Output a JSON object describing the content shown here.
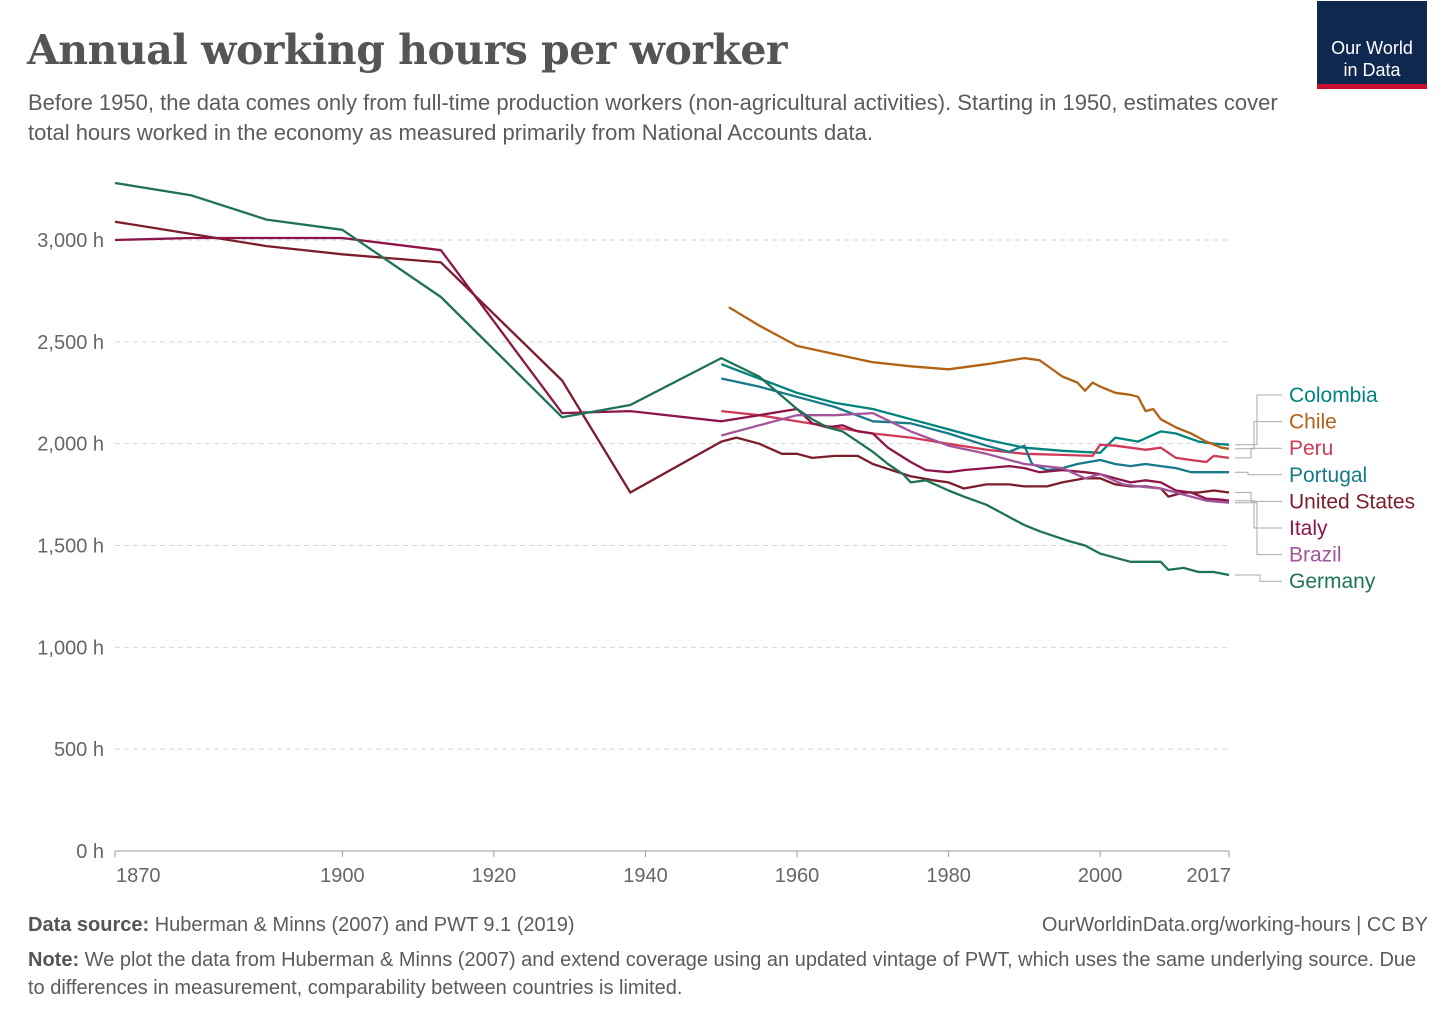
{
  "header": {
    "title": "Annual working hours per worker",
    "subtitle": "Before 1950, the data comes only from full-time production workers (non-agricultural activities). Starting in 1950, estimates cover total hours worked in the economy as measured primarily from National Accounts data."
  },
  "logo": {
    "line1": "Our World",
    "line2": "in Data",
    "bg_color": "#0f2850",
    "accent_color": "#c8102e"
  },
  "footer": {
    "source_label": "Data source:",
    "source_text": "Huberman & Minns (2007) and PWT 9.1 (2019)",
    "url_text": "OurWorldinData.org/working-hours | CC BY",
    "note_label": "Note:",
    "note_text": "We plot the data from Huberman & Minns (2007) and extend coverage using an updated vintage of PWT, which uses the same underlying source. Due to differences in measurement, comparability between countries is limited."
  },
  "chart_data": {
    "type": "line",
    "title": "Annual working hours per worker",
    "xlim": [
      1870,
      2017
    ],
    "ylim": [
      0,
      3000
    ],
    "x_ticks": [
      1870,
      1900,
      1920,
      1940,
      1960,
      1980,
      2000,
      2017
    ],
    "x_tick_labels": [
      "1870",
      "1900",
      "1920",
      "1940",
      "1960",
      "1980",
      "2000",
      "2017"
    ],
    "y_ticks": [
      0,
      500,
      1000,
      1500,
      2000,
      2500,
      3000
    ],
    "y_tick_labels": [
      "0 h",
      "500 h",
      "1,000 h",
      "1,500 h",
      "2,000 h",
      "2,500 h",
      "3,000 h"
    ],
    "grid": "horizontal dashed",
    "legend": "right, labels at line ends",
    "series": [
      {
        "name": "Colombia",
        "color": "#00847e",
        "points": [
          [
            1950,
            2390
          ],
          [
            1955,
            2320
          ],
          [
            1960,
            2250
          ],
          [
            1965,
            2200
          ],
          [
            1970,
            2170
          ],
          [
            1975,
            2120
          ],
          [
            1980,
            2070
          ],
          [
            1985,
            2020
          ],
          [
            1990,
            1980
          ],
          [
            1995,
            1965
          ],
          [
            2000,
            1955
          ],
          [
            2002,
            2030
          ],
          [
            2005,
            2010
          ],
          [
            2008,
            2060
          ],
          [
            2010,
            2050
          ],
          [
            2013,
            2010
          ],
          [
            2015,
            2000
          ],
          [
            2017,
            1995
          ]
        ]
      },
      {
        "name": "Chile",
        "color": "#b16214",
        "points": [
          [
            1951,
            2670
          ],
          [
            1955,
            2580
          ],
          [
            1960,
            2480
          ],
          [
            1965,
            2440
          ],
          [
            1970,
            2400
          ],
          [
            1975,
            2380
          ],
          [
            1980,
            2365
          ],
          [
            1985,
            2390
          ],
          [
            1990,
            2420
          ],
          [
            1992,
            2410
          ],
          [
            1995,
            2330
          ],
          [
            1997,
            2300
          ],
          [
            1998,
            2260
          ],
          [
            1999,
            2300
          ],
          [
            2000,
            2280
          ],
          [
            2002,
            2250
          ],
          [
            2004,
            2240
          ],
          [
            2005,
            2230
          ],
          [
            2006,
            2160
          ],
          [
            2007,
            2170
          ],
          [
            2008,
            2120
          ],
          [
            2010,
            2080
          ],
          [
            2012,
            2050
          ],
          [
            2014,
            2010
          ],
          [
            2016,
            1980
          ],
          [
            2017,
            1975
          ]
        ]
      },
      {
        "name": "Peru",
        "color": "#cf3b56",
        "points": [
          [
            1950,
            2160
          ],
          [
            1955,
            2140
          ],
          [
            1960,
            2110
          ],
          [
            1965,
            2080
          ],
          [
            1970,
            2050
          ],
          [
            1975,
            2030
          ],
          [
            1980,
            2000
          ],
          [
            1985,
            1970
          ],
          [
            1990,
            1950
          ],
          [
            1995,
            1945
          ],
          [
            1999,
            1940
          ],
          [
            2000,
            1995
          ],
          [
            2002,
            1990
          ],
          [
            2004,
            1980
          ],
          [
            2006,
            1970
          ],
          [
            2008,
            1980
          ],
          [
            2010,
            1930
          ],
          [
            2012,
            1920
          ],
          [
            2014,
            1910
          ],
          [
            2015,
            1940
          ],
          [
            2017,
            1930
          ]
        ]
      },
      {
        "name": "Portugal",
        "color": "#18798a",
        "points": [
          [
            1950,
            2320
          ],
          [
            1955,
            2280
          ],
          [
            1960,
            2230
          ],
          [
            1965,
            2180
          ],
          [
            1970,
            2110
          ],
          [
            1975,
            2100
          ],
          [
            1980,
            2050
          ],
          [
            1985,
            1990
          ],
          [
            1988,
            1960
          ],
          [
            1990,
            1990
          ],
          [
            1991,
            1900
          ],
          [
            1993,
            1870
          ],
          [
            1995,
            1880
          ],
          [
            1997,
            1900
          ],
          [
            2000,
            1920
          ],
          [
            2002,
            1900
          ],
          [
            2004,
            1890
          ],
          [
            2006,
            1900
          ],
          [
            2008,
            1890
          ],
          [
            2010,
            1880
          ],
          [
            2012,
            1860
          ],
          [
            2014,
            1860
          ],
          [
            2017,
            1860
          ]
        ]
      },
      {
        "name": "United States",
        "color": "#7c1d2b",
        "points": [
          [
            1870,
            3090
          ],
          [
            1880,
            3030
          ],
          [
            1890,
            2970
          ],
          [
            1900,
            2930
          ],
          [
            1913,
            2890
          ],
          [
            1929,
            2310
          ],
          [
            1938,
            1760
          ],
          [
            1950,
            2010
          ],
          [
            1952,
            2030
          ],
          [
            1955,
            2000
          ],
          [
            1958,
            1950
          ],
          [
            1960,
            1950
          ],
          [
            1962,
            1930
          ],
          [
            1965,
            1940
          ],
          [
            1968,
            1940
          ],
          [
            1970,
            1900
          ],
          [
            1975,
            1840
          ],
          [
            1978,
            1820
          ],
          [
            1980,
            1810
          ],
          [
            1982,
            1780
          ],
          [
            1985,
            1800
          ],
          [
            1988,
            1800
          ],
          [
            1990,
            1790
          ],
          [
            1993,
            1790
          ],
          [
            1995,
            1810
          ],
          [
            1998,
            1830
          ],
          [
            2000,
            1830
          ],
          [
            2002,
            1800
          ],
          [
            2004,
            1790
          ],
          [
            2006,
            1790
          ],
          [
            2008,
            1780
          ],
          [
            2009,
            1740
          ],
          [
            2011,
            1760
          ],
          [
            2013,
            1760
          ],
          [
            2015,
            1770
          ],
          [
            2017,
            1760
          ]
        ]
      },
      {
        "name": "Italy",
        "color": "#8c1549",
        "points": [
          [
            1870,
            3000
          ],
          [
            1880,
            3010
          ],
          [
            1890,
            3010
          ],
          [
            1900,
            3010
          ],
          [
            1913,
            2950
          ],
          [
            1929,
            2150
          ],
          [
            1938,
            2160
          ],
          [
            1950,
            2110
          ],
          [
            1955,
            2140
          ],
          [
            1960,
            2170
          ],
          [
            1962,
            2100
          ],
          [
            1964,
            2080
          ],
          [
            1966,
            2090
          ],
          [
            1968,
            2060
          ],
          [
            1970,
            2050
          ],
          [
            1972,
            1980
          ],
          [
            1975,
            1910
          ],
          [
            1977,
            1870
          ],
          [
            1980,
            1860
          ],
          [
            1982,
            1870
          ],
          [
            1985,
            1880
          ],
          [
            1988,
            1890
          ],
          [
            1990,
            1880
          ],
          [
            1992,
            1860
          ],
          [
            1995,
            1870
          ],
          [
            1998,
            1860
          ],
          [
            2000,
            1850
          ],
          [
            2002,
            1830
          ],
          [
            2004,
            1810
          ],
          [
            2006,
            1820
          ],
          [
            2008,
            1810
          ],
          [
            2010,
            1770
          ],
          [
            2012,
            1760
          ],
          [
            2014,
            1730
          ],
          [
            2016,
            1725
          ],
          [
            2017,
            1720
          ]
        ]
      },
      {
        "name": "Brazil",
        "color": "#a2559c",
        "points": [
          [
            1950,
            2040
          ],
          [
            1955,
            2090
          ],
          [
            1960,
            2140
          ],
          [
            1965,
            2140
          ],
          [
            1970,
            2150
          ],
          [
            1975,
            2060
          ],
          [
            1980,
            1990
          ],
          [
            1985,
            1950
          ],
          [
            1990,
            1900
          ],
          [
            1995,
            1880
          ],
          [
            1998,
            1830
          ],
          [
            2000,
            1850
          ],
          [
            2003,
            1800
          ],
          [
            2005,
            1790
          ],
          [
            2008,
            1780
          ],
          [
            2010,
            1760
          ],
          [
            2012,
            1740
          ],
          [
            2014,
            1720
          ],
          [
            2017,
            1710
          ]
        ]
      },
      {
        "name": "Germany",
        "color": "#1f7258",
        "points": [
          [
            1870,
            3280
          ],
          [
            1880,
            3220
          ],
          [
            1890,
            3100
          ],
          [
            1900,
            3050
          ],
          [
            1913,
            2720
          ],
          [
            1929,
            2130
          ],
          [
            1938,
            2190
          ],
          [
            1950,
            2420
          ],
          [
            1955,
            2330
          ],
          [
            1960,
            2170
          ],
          [
            1962,
            2120
          ],
          [
            1964,
            2080
          ],
          [
            1966,
            2060
          ],
          [
            1968,
            2010
          ],
          [
            1970,
            1960
          ],
          [
            1972,
            1900
          ],
          [
            1974,
            1850
          ],
          [
            1975,
            1810
          ],
          [
            1977,
            1820
          ],
          [
            1980,
            1770
          ],
          [
            1982,
            1740
          ],
          [
            1985,
            1700
          ],
          [
            1988,
            1640
          ],
          [
            1990,
            1600
          ],
          [
            1992,
            1570
          ],
          [
            1994,
            1545
          ],
          [
            1996,
            1520
          ],
          [
            1998,
            1500
          ],
          [
            2000,
            1460
          ],
          [
            2002,
            1440
          ],
          [
            2004,
            1420
          ],
          [
            2006,
            1420
          ],
          [
            2008,
            1420
          ],
          [
            2009,
            1380
          ],
          [
            2011,
            1390
          ],
          [
            2013,
            1370
          ],
          [
            2015,
            1370
          ],
          [
            2017,
            1355
          ]
        ]
      }
    ]
  }
}
